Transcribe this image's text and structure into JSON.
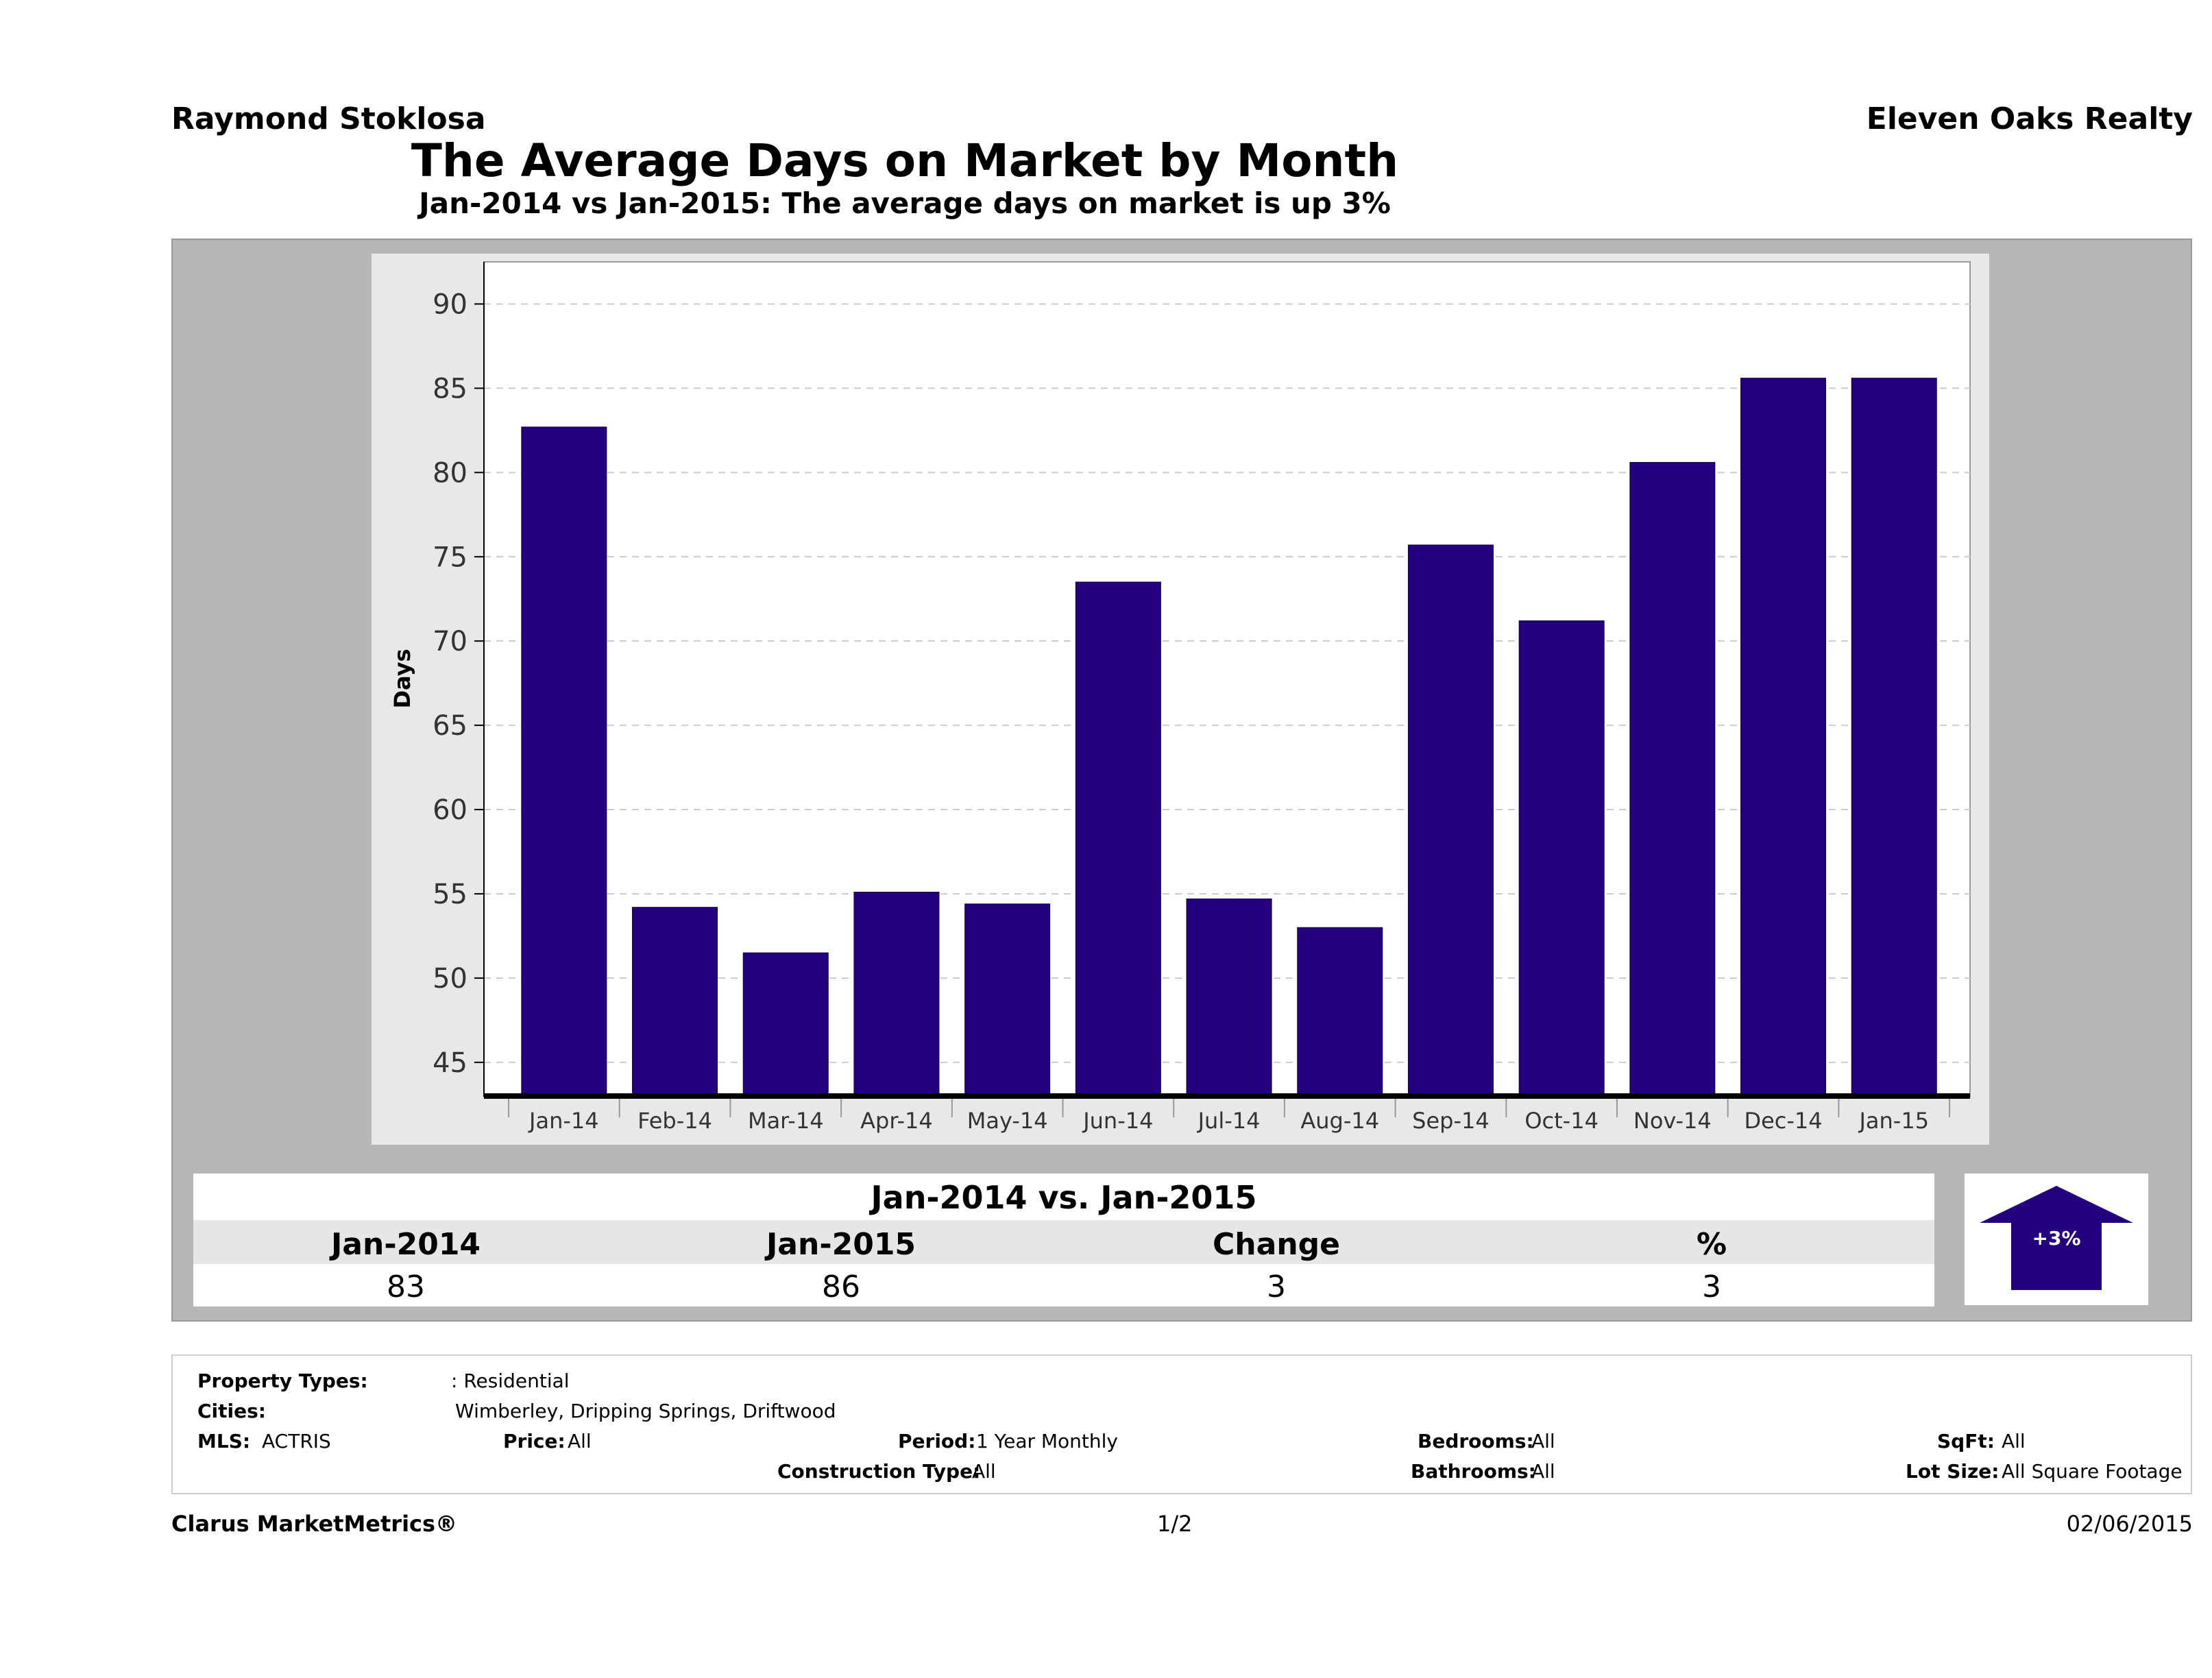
{
  "header": {
    "agent": "Raymond Stoklosa",
    "company": "Eleven Oaks Realty",
    "title": "The Average Days on Market by Month",
    "subtitle": "Jan-2014 vs Jan-2015: The average days on market is up 3%"
  },
  "chart_data": {
    "type": "bar",
    "title": "The Average Days on Market by Month",
    "xlabel": "",
    "ylabel": "Days",
    "categories": [
      "Jan-14",
      "Feb-14",
      "Mar-14",
      "Apr-14",
      "May-14",
      "Jun-14",
      "Jul-14",
      "Aug-14",
      "Sep-14",
      "Oct-14",
      "Nov-14",
      "Dec-14",
      "Jan-15"
    ],
    "values": [
      82.7,
      54.2,
      51.5,
      55.1,
      54.4,
      73.5,
      54.7,
      53.0,
      75.7,
      71.2,
      80.6,
      85.6,
      85.6
    ],
    "yticks": [
      45,
      50,
      55,
      60,
      65,
      70,
      75,
      80,
      85,
      90
    ],
    "ylim": [
      43,
      92.5
    ],
    "grid": true,
    "bar_color": "#24007e"
  },
  "summary": {
    "title": "Jan-2014 vs. Jan-2015",
    "headers": [
      "Jan-2014",
      "Jan-2015",
      "Change",
      "%"
    ],
    "values": [
      "83",
      "86",
      "3",
      "3"
    ],
    "badge": "+3%"
  },
  "criteria": {
    "property_types_label": "Property Types:",
    "property_types_value": ": Residential",
    "cities_label": "Cities:",
    "cities_value": "Wimberley, Dripping Springs, Driftwood",
    "mls_label": "MLS:",
    "mls_value": "ACTRIS",
    "price_label": "Price:",
    "price_value": "All",
    "period_label": "Period:",
    "period_value": "1 Year Monthly",
    "construction_label": "Construction Type:",
    "construction_value": "All",
    "bedrooms_label": "Bedrooms:",
    "bedrooms_value": "All",
    "bathrooms_label": "Bathrooms:",
    "bathrooms_value": "All",
    "sqft_label": "SqFt:",
    "sqft_value": "All",
    "lotsize_label": "Lot Size:",
    "lotsize_value": "All Square Footage"
  },
  "footer": {
    "brand": "Clarus MarketMetrics®",
    "page": "1/2",
    "date": "02/06/2015"
  }
}
